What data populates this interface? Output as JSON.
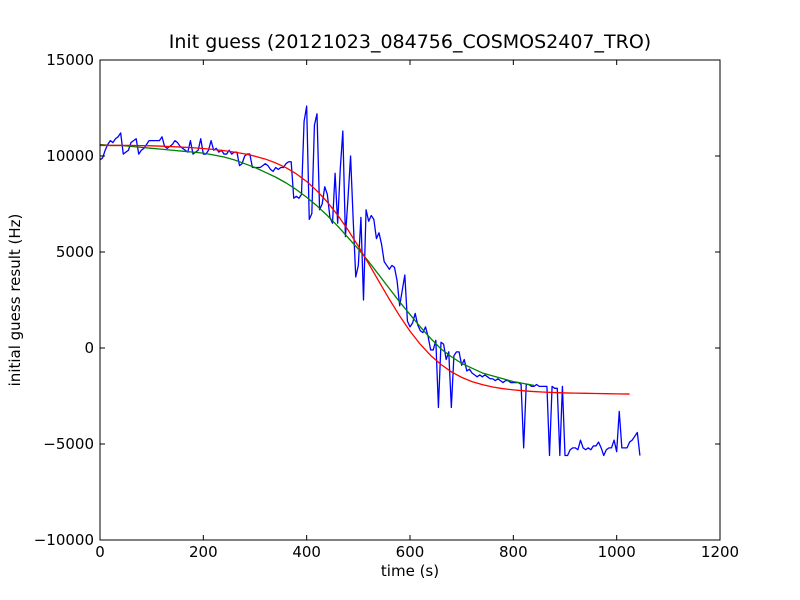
{
  "chart_data": {
    "type": "line",
    "title": "Init guess (20121023_084756_COSMOS2407_TRO)",
    "xlabel": "time (s)",
    "ylabel": "initial guess result (Hz)",
    "xlim": [
      0,
      1200
    ],
    "ylim": [
      -10000,
      15000
    ],
    "xticks": [
      0,
      200,
      400,
      600,
      800,
      1000,
      1200
    ],
    "yticks": [
      -10000,
      -5000,
      0,
      5000,
      10000,
      15000
    ],
    "xtick_labels": [
      "0",
      "200",
      "400",
      "600",
      "800",
      "1000",
      "1200"
    ],
    "ytick_labels": [
      "−10000",
      "−5000",
      "0",
      "5000",
      "10000",
      "15000"
    ],
    "grid": false,
    "series": [
      {
        "color": "#0000ff",
        "x": [
          0,
          5,
          10,
          15,
          20,
          25,
          30,
          35,
          40,
          45,
          50,
          55,
          60,
          65,
          70,
          75,
          80,
          85,
          90,
          95,
          100,
          105,
          110,
          115,
          120,
          125,
          130,
          135,
          140,
          145,
          150,
          155,
          160,
          165,
          170,
          175,
          180,
          185,
          190,
          195,
          200,
          205,
          210,
          215,
          220,
          225,
          230,
          235,
          240,
          245,
          250,
          255,
          260,
          265,
          270,
          275,
          280,
          285,
          290,
          295,
          300,
          305,
          310,
          315,
          320,
          325,
          330,
          335,
          340,
          345,
          350,
          355,
          360,
          365,
          370,
          375,
          380,
          385,
          390,
          395,
          400,
          405,
          410,
          415,
          420,
          425,
          430,
          435,
          440,
          445,
          450,
          455,
          460,
          465,
          470,
          475,
          480,
          485,
          490,
          495,
          500,
          505,
          510,
          515,
          520,
          525,
          530,
          535,
          540,
          545,
          550,
          555,
          560,
          565,
          570,
          575,
          580,
          585,
          590,
          595,
          600,
          605,
          610,
          615,
          620,
          625,
          630,
          635,
          640,
          645,
          650,
          655,
          660,
          665,
          670,
          675,
          680,
          685,
          690,
          695,
          700,
          705,
          710,
          715,
          720,
          725,
          730,
          735,
          740,
          745,
          750,
          755,
          760,
          765,
          770,
          775,
          780,
          785,
          790,
          795,
          800,
          805,
          810,
          815,
          820,
          825,
          830,
          835,
          840,
          845,
          850,
          855,
          860,
          865,
          870,
          875,
          880,
          885,
          890,
          895,
          900,
          905,
          910,
          915,
          920,
          925,
          930,
          935,
          940,
          945,
          950,
          955,
          960,
          965,
          970,
          975,
          980,
          985,
          990,
          995,
          1000,
          1005,
          1010,
          1015,
          1020,
          1025,
          1030,
          1035,
          1040,
          1045
        ],
        "y": [
          9800,
          9900,
          10300,
          10600,
          10800,
          10700,
          10900,
          11000,
          11200,
          10100,
          10200,
          10300,
          10700,
          10800,
          10900,
          10100,
          10300,
          10400,
          10600,
          10800,
          10800,
          10800,
          10800,
          10800,
          11000,
          10500,
          10400,
          10500,
          10600,
          10800,
          10700,
          10500,
          10400,
          10300,
          10200,
          10800,
          10100,
          10200,
          10300,
          10900,
          10100,
          10100,
          10300,
          10800,
          10300,
          10400,
          10200,
          10300,
          10100,
          10100,
          10300,
          10100,
          10200,
          10200,
          9500,
          9600,
          10000,
          10100,
          10100,
          9400,
          9400,
          9400,
          9400,
          9500,
          9600,
          9500,
          9300,
          9200,
          9400,
          9300,
          9400,
          9400,
          9600,
          9700,
          9700,
          7800,
          7900,
          7800,
          8000,
          11800,
          12600,
          6700,
          7000,
          11600,
          12200,
          7200,
          7500,
          8400,
          8000,
          6800,
          6500,
          9100,
          6500,
          9300,
          11300,
          5800,
          7800,
          10000,
          6700,
          3700,
          4300,
          6800,
          2500,
          7200,
          6600,
          6900,
          6700,
          5700,
          6000,
          5400,
          4500,
          4300,
          4100,
          4300,
          4200,
          3500,
          2200,
          3000,
          3800,
          1400,
          1100,
          1300,
          1800,
          1200,
          900,
          800,
          1100,
          600,
          -100,
          -100,
          400,
          -3100,
          300,
          200,
          -600,
          -200,
          -3100,
          -400,
          -200,
          -200,
          -900,
          -600,
          -1200,
          -1100,
          -1300,
          -1400,
          -1500,
          -1400,
          -1500,
          -1400,
          -1500,
          -1600,
          -1600,
          -1700,
          -1600,
          -1700,
          -1800,
          -1700,
          -1700,
          -1800,
          -1800,
          -1800,
          -1800,
          -1900,
          -5200,
          -1900,
          -1900,
          -2000,
          -2000,
          -1900,
          -2000,
          -2000,
          -2000,
          -2000,
          -5600,
          -2000,
          -2100,
          -2100,
          -5600,
          -2000,
          -5600,
          -5600,
          -5300,
          -5200,
          -5200,
          -5300,
          -4800,
          -5200,
          -5300,
          -5200,
          -5300,
          -5100,
          -5100,
          -4900,
          -5200,
          -5600,
          -5300,
          -5200,
          -5200,
          -4800,
          -5400,
          -3300,
          -5200,
          -5200,
          -5200,
          -4900,
          -4800,
          -4600,
          -4400,
          -5600
        ]
      },
      {
        "color": "#008000",
        "x": [
          0,
          20,
          40,
          60,
          80,
          100,
          120,
          140,
          160,
          180,
          200,
          220,
          240,
          260,
          280,
          300,
          320,
          340,
          360,
          380,
          400,
          420,
          440,
          460,
          480,
          500,
          520,
          540,
          560,
          580,
          600,
          620,
          640,
          660,
          680,
          700,
          720,
          740,
          760,
          780,
          800,
          820,
          840
        ],
        "y": [
          10600,
          10550,
          10550,
          10500,
          10450,
          10400,
          10350,
          10300,
          10250,
          10200,
          10150,
          10050,
          9950,
          9800,
          9600,
          9400,
          9150,
          8900,
          8600,
          8250,
          7850,
          7400,
          6900,
          6350,
          5750,
          5150,
          4500,
          3800,
          3100,
          2400,
          1750,
          1100,
          500,
          -50,
          -450,
          -800,
          -1050,
          -1300,
          -1450,
          -1600,
          -1750,
          -1850,
          -1950
        ]
      },
      {
        "color": "#ff0000",
        "x": [
          0,
          20,
          40,
          60,
          80,
          100,
          120,
          140,
          160,
          180,
          200,
          220,
          240,
          260,
          280,
          300,
          320,
          340,
          360,
          380,
          400,
          420,
          440,
          460,
          480,
          500,
          520,
          540,
          560,
          580,
          600,
          620,
          640,
          660,
          680,
          700,
          720,
          740,
          760,
          780,
          800,
          820,
          840,
          860,
          880,
          900,
          920,
          940,
          960,
          980,
          1000,
          1025
        ],
        "y": [
          10550,
          10550,
          10550,
          10550,
          10540,
          10530,
          10510,
          10490,
          10460,
          10430,
          10390,
          10340,
          10280,
          10200,
          10110,
          9990,
          9840,
          9640,
          9390,
          9070,
          8670,
          8180,
          7600,
          6920,
          6150,
          5300,
          4390,
          3460,
          2540,
          1670,
          880,
          190,
          -390,
          -860,
          -1240,
          -1530,
          -1750,
          -1910,
          -2030,
          -2120,
          -2180,
          -2230,
          -2270,
          -2300,
          -2320,
          -2340,
          -2350,
          -2360,
          -2370,
          -2380,
          -2390,
          -2400
        ]
      }
    ]
  }
}
